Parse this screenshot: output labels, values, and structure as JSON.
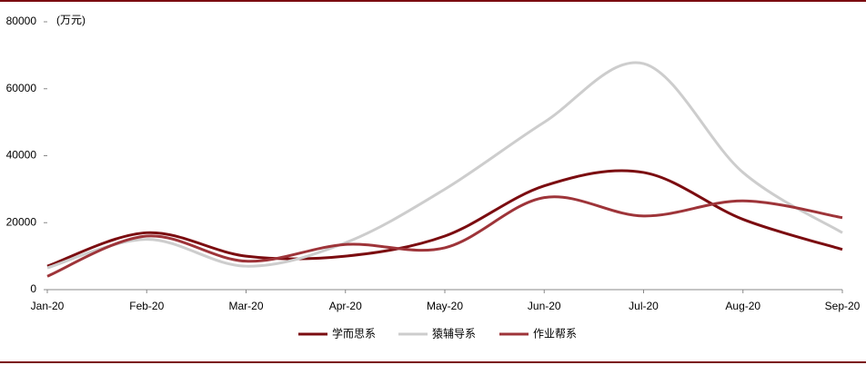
{
  "chart_data": {
    "type": "line",
    "unit_label": "(万元)",
    "categories": [
      "Jan-20",
      "Feb-20",
      "Mar-20",
      "Apr-20",
      "May-20",
      "Jun-20",
      "Jul-20",
      "Aug-20",
      "Sep-20"
    ],
    "series": [
      {
        "name": "学而思系",
        "color": "#7b0c10",
        "values": [
          7000,
          17000,
          10000,
          10000,
          16000,
          31000,
          35000,
          21000,
          12000
        ]
      },
      {
        "name": "猿辅导系",
        "color": "#cdcdcd",
        "values": [
          6500,
          15000,
          7000,
          14000,
          30000,
          50000,
          67500,
          35000,
          17000
        ]
      },
      {
        "name": "作业帮系",
        "color": "#9e3439",
        "values": [
          4000,
          16000,
          8500,
          13500,
          12500,
          27500,
          22000,
          26500,
          21500
        ]
      }
    ],
    "ylim": [
      0,
      80000
    ],
    "yticks": [
      0,
      20000,
      40000,
      60000,
      80000
    ],
    "smooth": true
  }
}
